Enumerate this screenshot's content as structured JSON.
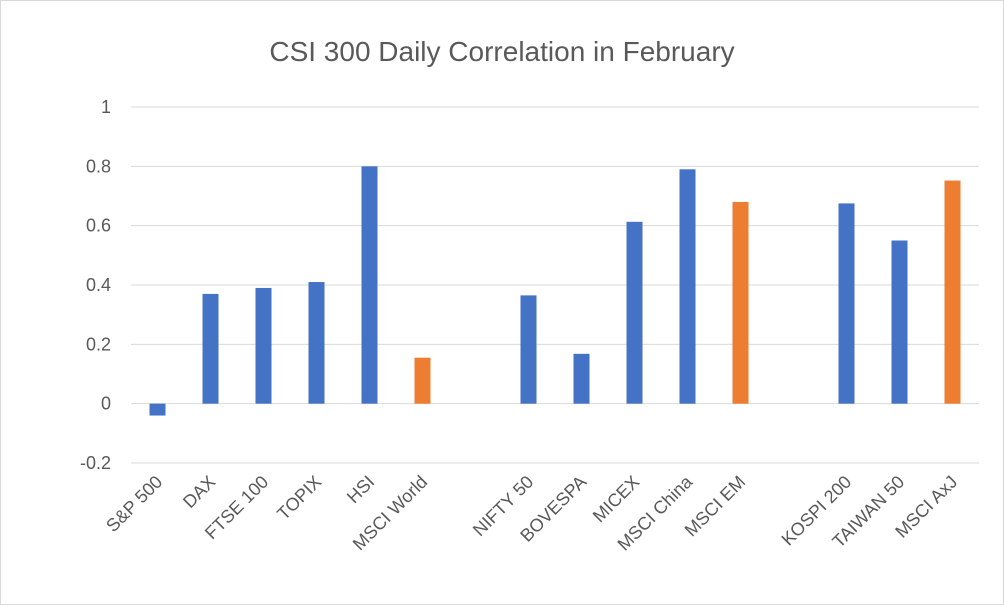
{
  "chart_data": {
    "type": "bar",
    "title": "CSI 300 Daily Correlation in February",
    "xlabel": "",
    "ylabel": "",
    "ylim": [
      -0.2,
      1
    ],
    "yticks": [
      1,
      0.8,
      0.6,
      0.4,
      0.2,
      0,
      -0.2
    ],
    "ytick_labels": [
      "1",
      "0.8",
      "0.6",
      "0.4",
      "0.2",
      "0",
      "-0.2"
    ],
    "grid": true,
    "legend": "none",
    "categories": [
      "S&P 500",
      "DAX",
      "FTSE 100",
      "TOPIX",
      "HSI",
      "MSCI World",
      "",
      "NIFTY 50",
      "BOVESPA",
      "MICEX",
      "MSCI China",
      "MSCI EM",
      "",
      "KOSPI 200",
      "TAIWAN 50",
      "MSCI AxJ"
    ],
    "values": [
      -0.04,
      0.37,
      0.39,
      0.41,
      0.8,
      0.155,
      null,
      0.365,
      0.168,
      0.613,
      0.79,
      0.68,
      null,
      0.675,
      0.55,
      0.752
    ],
    "bar_colors": [
      "#4472c4",
      "#4472c4",
      "#4472c4",
      "#4472c4",
      "#4472c4",
      "#ed7d31",
      null,
      "#4472c4",
      "#4472c4",
      "#4472c4",
      "#4472c4",
      "#ed7d31",
      null,
      "#4472c4",
      "#4472c4",
      "#ed7d31"
    ]
  }
}
